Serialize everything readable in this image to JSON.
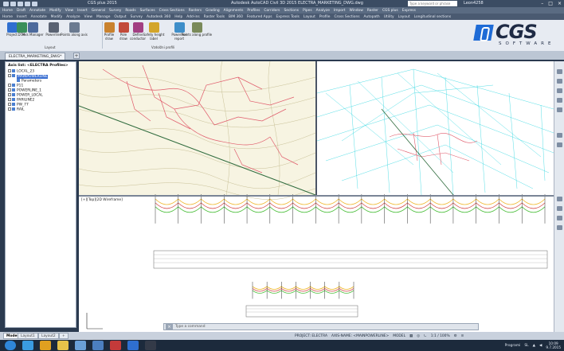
{
  "window": {
    "app_title": "CGS plus 2015",
    "doc_title": "Autodesk AutoCAD Civil 3D 2015  ELECTRA_MARKETING_DWG.dwg",
    "search_placeholder": "Type a keyword or phrase",
    "user": "Leon4258",
    "controls": [
      "–",
      "□",
      "×"
    ]
  },
  "menubar": [
    "Home",
    "Insert",
    "Annotate",
    "Modify",
    "Analyze",
    "View",
    "Manage",
    "Output",
    "Survey",
    "Autodesk 360",
    "Help",
    "Add-ins",
    "Raster Tools",
    "BIM 360",
    "Featured Apps",
    "Express Tools",
    "Layout",
    "Profile",
    "Cross Sections",
    "Autopath",
    "Utility",
    "Layout",
    "Longitudinal sections"
  ],
  "menubar_top": [
    "Home",
    "Draft",
    "Annotate",
    "Modify",
    "View",
    "Insert",
    "General",
    "Survey",
    "Roads",
    "Surfaces",
    "Cross Sections",
    "Rasters",
    "Grading",
    "Alignments",
    "Profiles",
    "Corridors",
    "Sections",
    "Pipes",
    "Analyze",
    "Import",
    "Window",
    "Raster",
    "CGS plus",
    "Express"
  ],
  "ribbon": {
    "buttons": [
      {
        "label": "Project",
        "icon": "project-icon",
        "color": "#2f6fd0"
      },
      {
        "label": "DTM",
        "icon": "dtm-icon",
        "color": "#3a8f5a"
      },
      {
        "label": "Axis Manager",
        "icon": "axis-manager-icon",
        "color": "#4d6a9c"
      },
      {
        "label": "Powerline",
        "icon": "powerline-icon",
        "color": "#5a6272"
      },
      {
        "label": "Points along axis",
        "icon": "points-axis-icon",
        "color": "#6b7a90"
      },
      {
        "label": "Profile\ndraw",
        "icon": "profile-draw-icon",
        "color": "#c9822e"
      },
      {
        "label": "Pole\ndraw",
        "icon": "pole-draw-icon",
        "color": "#c24a3a"
      },
      {
        "label": "Define\nconductor",
        "icon": "conductor-icon",
        "color": "#a23f82"
      },
      {
        "label": "Safety height\nlabel",
        "icon": "safety-height-icon",
        "color": "#d3a52a"
      },
      {
        "label": "Powerline\nreport",
        "icon": "powerline-report-icon",
        "color": "#3e8ec9"
      },
      {
        "label": "Points along profile",
        "icon": "points-profile-icon",
        "color": "#7a8a5a"
      }
    ],
    "groups": [
      "Layout",
      "Vzdolžni profili"
    ]
  },
  "brand": {
    "word": "CGS",
    "sub": "SOFTWARE",
    "color": "#1e6bd6"
  },
  "file_tab": "ELECTRA_MARKETING_DWG*",
  "tree": {
    "title": "Axis list: <ELECTRA Profiles>",
    "items": [
      {
        "label": "LOCAL_23",
        "level": 0,
        "selected": false
      },
      {
        "label": "MAINPOWERLINE",
        "level": 0,
        "selected": true
      },
      {
        "label": "Parameters",
        "level": 1,
        "selected": false
      },
      {
        "label": "P11",
        "level": 0,
        "selected": false
      },
      {
        "label": "POWERLINE_1",
        "level": 0,
        "selected": false
      },
      {
        "label": "POWER_LOCAL",
        "level": 0,
        "selected": false
      },
      {
        "label": "PARILINE2",
        "level": 0,
        "selected": false
      },
      {
        "label": "PW_77",
        "level": 0,
        "selected": false
      },
      {
        "label": "RAIL",
        "level": 0,
        "selected": false
      }
    ]
  },
  "viewport_label": "[+][Top][2D Wireframe]",
  "command_placeholder": "Type a command",
  "layout_tabs": [
    {
      "label": "Model",
      "active": true
    },
    {
      "label": "Layout1",
      "active": false
    },
    {
      "label": "Layout2",
      "active": false
    },
    {
      "label": "+",
      "active": false
    }
  ],
  "status": {
    "project": "PROJECT: ELECTRA",
    "axis": "AXIS-NAME: <MAINPOWERLINE>",
    "mode": "MODEL",
    "scale": "1:1 / 100%"
  },
  "taskbar": {
    "apps": [
      {
        "icon": "start-icon",
        "color": "#2f86d8"
      },
      {
        "icon": "internet-explorer-icon",
        "color": "#3a9be0"
      },
      {
        "icon": "chrome-icon",
        "color": "#e0a020"
      },
      {
        "icon": "file-explorer-icon",
        "color": "#e6c24a"
      },
      {
        "icon": "paint-icon",
        "color": "#6aa0d8"
      },
      {
        "icon": "media-icon",
        "color": "#4c7fc0"
      },
      {
        "icon": "autocad-icon",
        "color": "#c43a3a"
      },
      {
        "icon": "cgs-icon",
        "color": "#2f6fd0"
      },
      {
        "icon": "cmd-icon",
        "color": "#333a48"
      }
    ],
    "programs_label": "Programi",
    "time": "10:09",
    "date": "9.7.2015",
    "lang": "SL"
  }
}
